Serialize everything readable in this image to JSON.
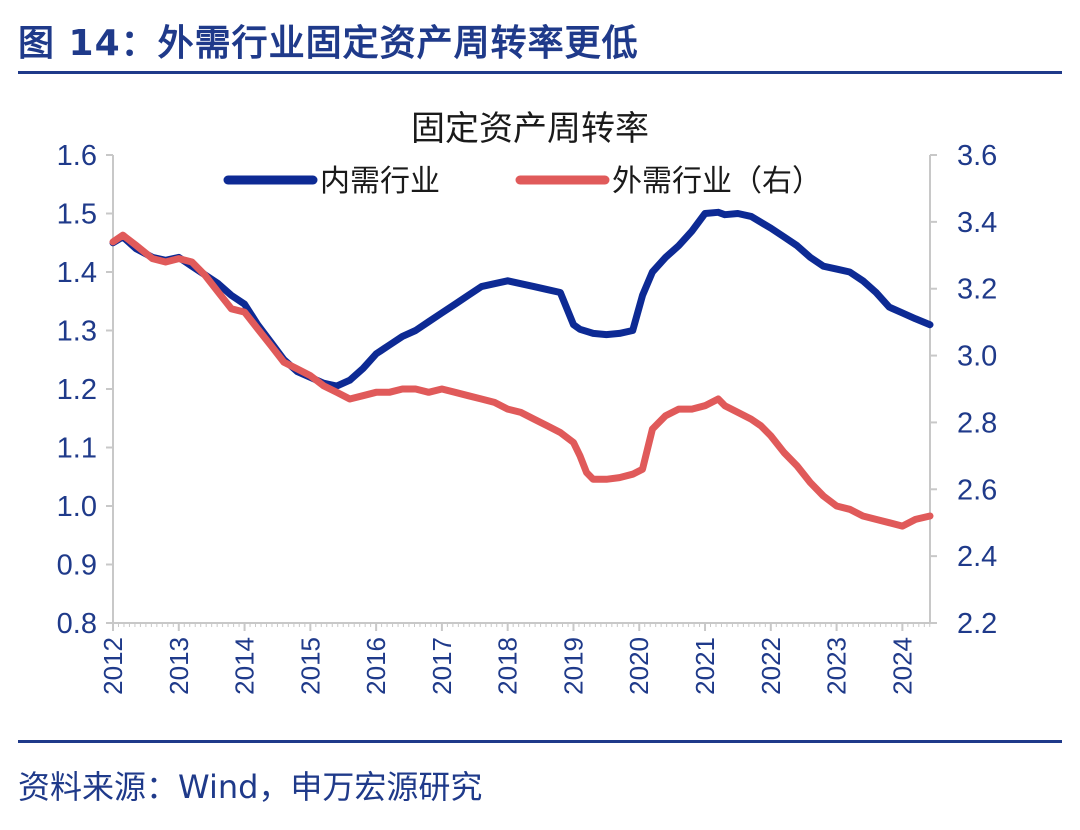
{
  "header": {
    "figure_title": "图 14：外需行业固定资产周转率更低"
  },
  "footer": {
    "source": "资料来源：Wind，申万宏源研究"
  },
  "colors": {
    "accent": "#1f3a8a",
    "series_domestic": "#0d2a94",
    "series_external": "#e05a5a"
  },
  "chart_data": {
    "type": "line",
    "title": "固定资产周转率",
    "legend_position": "top",
    "grid": false,
    "x_ticks": [
      "2012",
      "2013",
      "2014",
      "2015",
      "2016",
      "2017",
      "2018",
      "2019",
      "2020",
      "2021",
      "2022",
      "2023",
      "2024"
    ],
    "xlim": [
      2012.0,
      2024.42
    ],
    "y_left": {
      "range": [
        0.8,
        1.6
      ],
      "ticks": [
        "1.6",
        "1.5",
        "1.4",
        "1.3",
        "1.2",
        "1.1",
        "1.0",
        "0.9",
        "0.8"
      ]
    },
    "y_right": {
      "range": [
        2.2,
        3.6
      ],
      "ticks": [
        "3.6",
        "3.4",
        "3.2",
        "3.0",
        "2.8",
        "2.6",
        "2.4",
        "2.2"
      ]
    },
    "series": [
      {
        "name": "内需行业",
        "axis": "left",
        "x": [
          2012.0,
          2012.15,
          2012.35,
          2012.6,
          2012.8,
          2013.0,
          2013.2,
          2013.4,
          2013.6,
          2013.8,
          2014.0,
          2014.2,
          2014.4,
          2014.6,
          2014.8,
          2015.0,
          2015.2,
          2015.4,
          2015.6,
          2015.8,
          2016.0,
          2016.2,
          2016.4,
          2016.6,
          2016.8,
          2017.0,
          2017.2,
          2017.4,
          2017.6,
          2017.8,
          2018.0,
          2018.2,
          2018.4,
          2018.6,
          2018.8,
          2019.0,
          2019.1,
          2019.3,
          2019.5,
          2019.7,
          2019.9,
          2020.05,
          2020.2,
          2020.4,
          2020.6,
          2020.8,
          2021.0,
          2021.2,
          2021.3,
          2021.5,
          2021.7,
          2021.85,
          2022.0,
          2022.2,
          2022.4,
          2022.6,
          2022.8,
          2023.0,
          2023.2,
          2023.4,
          2023.6,
          2023.8,
          2024.0,
          2024.2,
          2024.42
        ],
        "values": [
          1.45,
          1.46,
          1.44,
          1.425,
          1.42,
          1.425,
          1.41,
          1.395,
          1.38,
          1.36,
          1.345,
          1.31,
          1.28,
          1.25,
          1.23,
          1.22,
          1.21,
          1.205,
          1.215,
          1.235,
          1.26,
          1.275,
          1.29,
          1.3,
          1.315,
          1.33,
          1.345,
          1.36,
          1.375,
          1.38,
          1.385,
          1.38,
          1.375,
          1.37,
          1.365,
          1.31,
          1.302,
          1.295,
          1.293,
          1.295,
          1.3,
          1.36,
          1.4,
          1.425,
          1.445,
          1.47,
          1.5,
          1.502,
          1.498,
          1.5,
          1.495,
          1.485,
          1.475,
          1.46,
          1.445,
          1.425,
          1.41,
          1.405,
          1.4,
          1.385,
          1.365,
          1.34,
          1.33,
          1.32,
          1.31
        ]
      },
      {
        "name": "外需行业（右）",
        "axis": "right",
        "x": [
          2012.0,
          2012.15,
          2012.35,
          2012.6,
          2012.8,
          2013.0,
          2013.2,
          2013.4,
          2013.6,
          2013.8,
          2014.0,
          2014.2,
          2014.4,
          2014.6,
          2014.8,
          2015.0,
          2015.2,
          2015.4,
          2015.6,
          2015.8,
          2016.0,
          2016.2,
          2016.4,
          2016.6,
          2016.8,
          2017.0,
          2017.2,
          2017.4,
          2017.6,
          2017.8,
          2018.0,
          2018.2,
          2018.4,
          2018.6,
          2018.8,
          2019.0,
          2019.1,
          2019.2,
          2019.3,
          2019.5,
          2019.7,
          2019.9,
          2020.05,
          2020.2,
          2020.4,
          2020.6,
          2020.8,
          2021.0,
          2021.2,
          2021.3,
          2021.5,
          2021.7,
          2021.85,
          2022.0,
          2022.2,
          2022.4,
          2022.6,
          2022.8,
          2023.0,
          2023.2,
          2023.4,
          2023.6,
          2023.8,
          2024.0,
          2024.2,
          2024.42
        ],
        "values": [
          3.34,
          3.36,
          3.33,
          3.29,
          3.28,
          3.29,
          3.28,
          3.24,
          3.19,
          3.14,
          3.13,
          3.08,
          3.03,
          2.98,
          2.96,
          2.94,
          2.91,
          2.89,
          2.87,
          2.88,
          2.89,
          2.89,
          2.9,
          2.9,
          2.89,
          2.9,
          2.89,
          2.88,
          2.87,
          2.86,
          2.84,
          2.83,
          2.81,
          2.79,
          2.77,
          2.74,
          2.7,
          2.65,
          2.63,
          2.63,
          2.635,
          2.645,
          2.66,
          2.78,
          2.82,
          2.84,
          2.84,
          2.85,
          2.87,
          2.85,
          2.83,
          2.81,
          2.79,
          2.76,
          2.71,
          2.67,
          2.62,
          2.58,
          2.55,
          2.54,
          2.52,
          2.51,
          2.5,
          2.49,
          2.51,
          2.52
        ]
      }
    ]
  }
}
